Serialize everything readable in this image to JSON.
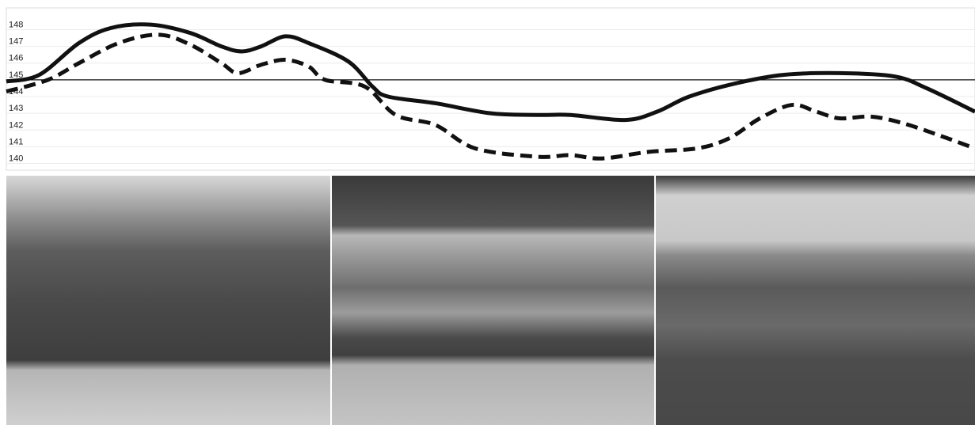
{
  "chart_data": {
    "type": "line",
    "xlim": [
      0,
      100
    ],
    "ylim": [
      139.6,
      149.3
    ],
    "yticks": [
      140,
      141,
      142,
      143,
      144,
      145,
      146,
      147,
      148
    ],
    "grid": true,
    "reference_line": 145,
    "series": [
      {
        "color": "#111111",
        "dashed": false,
        "x": [
          0,
          3.4,
          7.5,
          10.8,
          14.9,
          19.0,
          22.2,
          24.3,
          26.3,
          28.8,
          31.2,
          35.3,
          37.8,
          39.4,
          44.3,
          50.0,
          54.9,
          58.2,
          63.9,
          67.2,
          70.5,
          75.4,
          80.3,
          86.0,
          91.7,
          95.0,
          100
        ],
        "values": [
          144.9,
          145.3,
          147.2,
          148.1,
          148.3,
          147.8,
          147.0,
          146.7,
          147.0,
          147.6,
          147.2,
          146.1,
          144.6,
          144.0,
          143.6,
          143.0,
          142.9,
          142.9,
          142.6,
          143.1,
          144.0,
          144.8,
          145.3,
          145.4,
          145.2,
          144.5,
          143.1
        ]
      },
      {
        "color": "#111111",
        "dashed": true,
        "x": [
          0,
          4.3,
          7.5,
          11.6,
          15.7,
          19.0,
          22.2,
          23.9,
          26.3,
          28.8,
          31.2,
          32.9,
          37.0,
          40.2,
          44.3,
          48.4,
          54.9,
          58.2,
          61.5,
          66.4,
          71.3,
          74.6,
          77.8,
          81.1,
          83.6,
          86.0,
          89.3,
          92.6,
          96.7,
          100
        ],
        "values": [
          144.3,
          145.0,
          146.0,
          147.2,
          147.7,
          147.1,
          146.0,
          145.4,
          145.9,
          146.2,
          145.8,
          145.0,
          144.6,
          142.9,
          142.3,
          140.9,
          140.4,
          140.5,
          140.3,
          140.7,
          140.9,
          141.5,
          142.7,
          143.5,
          143.1,
          142.7,
          142.8,
          142.4,
          141.6,
          140.9
        ]
      }
    ]
  }
}
